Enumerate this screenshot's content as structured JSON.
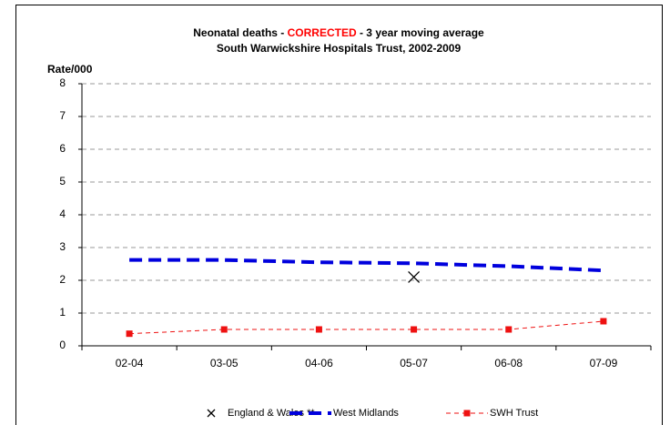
{
  "chart_data": {
    "type": "line",
    "title": [
      "Neonatal deaths - ",
      "CORRECTED",
      " - 3 year moving average"
    ],
    "title_highlight_color": "#ff0000",
    "subtitle": "South Warwickshire Hospitals Trust, 2002-2009",
    "y_label": "Rate/000",
    "categories": [
      "02-04",
      "03-05",
      "04-06",
      "05-07",
      "06-08",
      "07-09"
    ],
    "series": [
      {
        "name": "England & Wales **",
        "color": "#000000",
        "line": "none",
        "marker": "x",
        "values": [
          null,
          null,
          null,
          2.1,
          null,
          null
        ]
      },
      {
        "name": "West Midlands",
        "color": "#0000dd",
        "line": "dashed-thick",
        "marker": "none",
        "values": [
          2.62,
          2.62,
          2.55,
          2.52,
          2.43,
          2.3
        ]
      },
      {
        "name": "SWH Trust",
        "color": "#ee1111",
        "line": "dashed-thin",
        "marker": "square",
        "values": [
          0.37,
          0.5,
          0.5,
          0.5,
          0.5,
          0.75
        ]
      }
    ],
    "ylim": [
      0,
      8
    ],
    "yticks": [
      0,
      1,
      2,
      3,
      4,
      5,
      6,
      7,
      8
    ],
    "grid": true,
    "legend": "bottom"
  }
}
